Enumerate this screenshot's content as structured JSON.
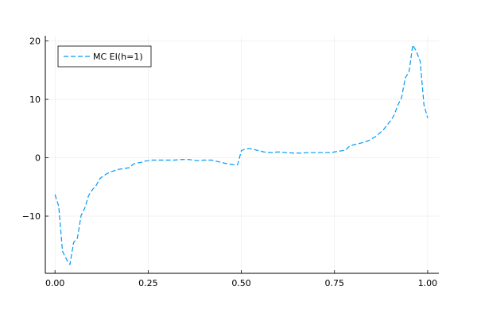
{
  "chart_data": {
    "type": "line",
    "title": "",
    "xlabel": "",
    "ylabel": "",
    "xlim": [
      -0.026,
      1.03
    ],
    "ylim": [
      -19.8,
      20.9
    ],
    "xticks": [
      0.0,
      0.25,
      0.5,
      0.75,
      1.0
    ],
    "xtick_labels": [
      "0.00",
      "0.25",
      "0.50",
      "0.75",
      "1.00"
    ],
    "yticks": [
      -10,
      0,
      10,
      20
    ],
    "ytick_labels": [
      "−10",
      "0",
      "10",
      "20"
    ],
    "grid": true,
    "legend": {
      "position": "top-left",
      "entries": [
        "MC EI(h=1)"
      ]
    },
    "series": [
      {
        "name": "MC EI(h=1)",
        "color": "#009af9",
        "line_style": "dashed",
        "x": [
          0.0,
          0.01,
          0.02,
          0.03,
          0.04,
          0.05,
          0.06,
          0.07,
          0.08,
          0.09,
          0.1,
          0.11,
          0.12,
          0.13,
          0.14,
          0.15,
          0.16,
          0.17,
          0.18,
          0.19,
          0.2,
          0.21,
          0.22,
          0.23,
          0.24,
          0.25,
          0.26,
          0.28,
          0.3,
          0.32,
          0.34,
          0.36,
          0.38,
          0.4,
          0.42,
          0.44,
          0.46,
          0.48,
          0.49,
          0.5,
          0.51,
          0.52,
          0.53,
          0.54,
          0.56,
          0.58,
          0.6,
          0.62,
          0.64,
          0.66,
          0.68,
          0.7,
          0.72,
          0.74,
          0.76,
          0.78,
          0.79,
          0.8,
          0.82,
          0.84,
          0.86,
          0.88,
          0.9,
          0.91,
          0.92,
          0.93,
          0.94,
          0.95,
          0.96,
          0.97,
          0.98,
          0.99,
          1.0
        ],
        "y": [
          -6.3,
          -8.3,
          -16.0,
          -17.3,
          -18.3,
          -14.5,
          -13.8,
          -9.9,
          -8.6,
          -6.5,
          -5.5,
          -4.8,
          -3.6,
          -3.1,
          -2.7,
          -2.4,
          -2.2,
          -2.0,
          -1.9,
          -1.8,
          -1.7,
          -1.1,
          -0.9,
          -0.8,
          -0.6,
          -0.5,
          -0.4,
          -0.4,
          -0.4,
          -0.4,
          -0.3,
          -0.3,
          -0.5,
          -0.4,
          -0.4,
          -0.7,
          -1.0,
          -1.2,
          -1.2,
          1.2,
          1.5,
          1.6,
          1.5,
          1.3,
          1.0,
          0.9,
          1.0,
          0.9,
          0.8,
          0.8,
          0.9,
          0.9,
          0.9,
          0.9,
          1.1,
          1.3,
          2.0,
          2.2,
          2.5,
          2.9,
          3.6,
          4.7,
          6.3,
          7.3,
          9.0,
          10.3,
          13.7,
          14.7,
          19.3,
          18.2,
          16.5,
          9.1,
          6.8
        ]
      }
    ]
  }
}
